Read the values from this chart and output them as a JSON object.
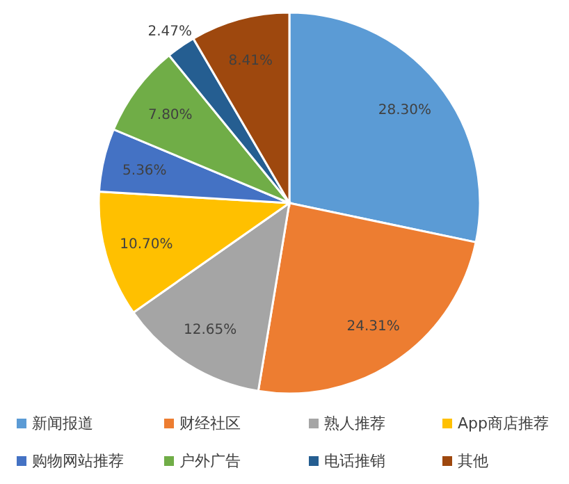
{
  "chart_data": {
    "type": "pie",
    "categories": [
      "新闻报道",
      "财经社区",
      "熟人推荐",
      "App商店推荐",
      "购物网站推荐",
      "户外广告",
      "电话推销",
      "其他"
    ],
    "values": [
      28.3,
      24.31,
      12.65,
      10.7,
      5.36,
      7.8,
      2.47,
      8.41
    ],
    "value_labels": [
      "28.30%",
      "24.31%",
      "12.65%",
      "10.70%",
      "5.36%",
      "7.80%",
      "2.47%",
      "8.41%"
    ],
    "colors": [
      "#5b9bd5",
      "#ed7d31",
      "#a5a5a5",
      "#ffc000",
      "#4472c4",
      "#70ad47",
      "#255e91",
      "#9e480e"
    ],
    "legend": "bottom"
  }
}
